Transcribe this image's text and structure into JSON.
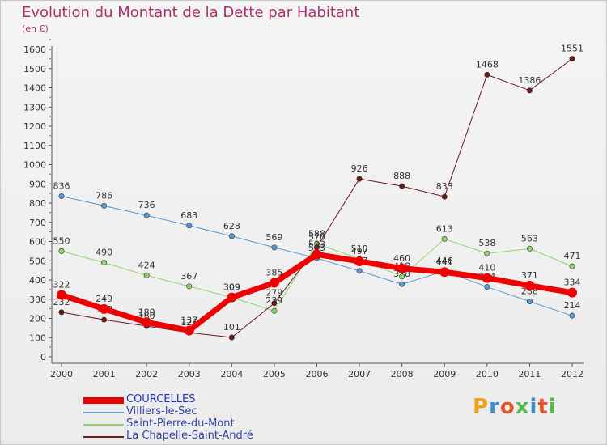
{
  "title": "Evolution du Montant de la Dette par Habitant",
  "subtitle": "(en €)",
  "brand": "Proxiti",
  "chart_data": {
    "type": "line",
    "x": [
      "2000",
      "2001",
      "2002",
      "2003",
      "2004",
      "2005",
      "2006",
      "2007",
      "2008",
      "2009",
      "2010",
      "2011",
      "2012"
    ],
    "ylim": [
      0,
      1600
    ],
    "yticks": [
      0,
      100,
      200,
      300,
      400,
      500,
      600,
      700,
      800,
      900,
      1000,
      1100,
      1200,
      1300,
      1400,
      1500,
      1600
    ],
    "grid": false,
    "legend_position": "bottom-left",
    "series": [
      {
        "name": "COURCELLES",
        "color": "#ee0000",
        "width": 7,
        "values": [
          322,
          249,
          180,
          137,
          309,
          385,
          533,
          497,
          460,
          441,
          410,
          371,
          334
        ]
      },
      {
        "name": "Villiers-le-Sec",
        "color": "#5c9ad6",
        "width": 1,
        "values": [
          836,
          786,
          736,
          683,
          628,
          569,
          513,
          447,
          378,
          446,
          364,
          288,
          214
        ]
      },
      {
        "name": "Saint-Pierre-du-Mont",
        "color": "#8fd468",
        "width": 1,
        "values": [
          550,
          490,
          424,
          367,
          309,
          239,
          588,
          510,
          418,
          613,
          538,
          563,
          471
        ]
      },
      {
        "name": "La Chapelle-Saint-André",
        "color": "#6b1a1a",
        "width": 1,
        "values": [
          232,
          193,
          160,
          126,
          101,
          279,
          570,
          926,
          888,
          833,
          1468,
          1386,
          1551
        ]
      }
    ]
  }
}
